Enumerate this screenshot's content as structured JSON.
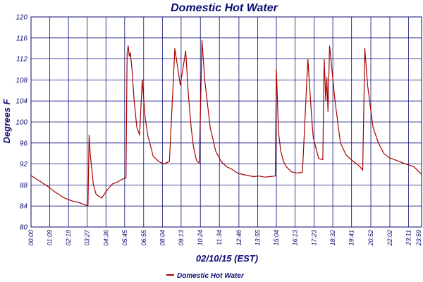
{
  "chart_data": {
    "type": "line",
    "title": "Domestic Hot Water",
    "xlabel": "02/10/15 (EST)",
    "ylabel": "Degrees F",
    "ylim": [
      80,
      120
    ],
    "yticks": [
      "80",
      "84",
      "88",
      "92",
      "96",
      "100",
      "104",
      "108",
      "112",
      "116",
      "120"
    ],
    "xlim_minutes": [
      0,
      1439
    ],
    "xticks": [
      "00:00",
      "01:09",
      "02:18",
      "03:27",
      "04:36",
      "05:45",
      "06:55",
      "08:04",
      "09:13",
      "10:24",
      "11:34",
      "12:46",
      "13:55",
      "15:04",
      "16:13",
      "17:23",
      "18:32",
      "19:41",
      "20:52",
      "22:02",
      "23:11",
      "23:59"
    ],
    "grid": true,
    "legend_position": "bottom-center",
    "colors": {
      "series": "#aa0000",
      "grid": "#0b0b73",
      "text": "#0b0b73"
    },
    "series": [
      {
        "name": "Domestic Hot Water",
        "x": [
          0,
          30,
          60,
          90,
          120,
          150,
          180,
          200,
          210,
          214,
          218,
          230,
          240,
          260,
          280,
          300,
          320,
          340,
          350,
          354,
          358,
          362,
          366,
          372,
          380,
          390,
          400,
          410,
          420,
          430,
          440,
          450,
          460,
          470,
          490,
          510,
          530,
          550,
          570,
          580,
          590,
          598,
          604,
          608,
          612,
          620,
          630,
          640,
          660,
          680,
          700,
          720,
          740,
          760,
          780,
          800,
          820,
          840,
          860,
          880,
          900,
          904,
          908,
          912,
          920,
          930,
          940,
          950,
          960,
          980,
          1000,
          1020,
          1030,
          1036,
          1040,
          1050,
          1060,
          1075,
          1080,
          1086,
          1090,
          1094,
          1100,
          1120,
          1140,
          1160,
          1180,
          1200,
          1212,
          1216,
          1222,
          1230,
          1240,
          1260,
          1280,
          1300,
          1320,
          1350,
          1380,
          1410,
          1430,
          1439
        ],
        "y": [
          89.8,
          88.8,
          87.8,
          86.6,
          85.6,
          85.0,
          84.6,
          84.2,
          84.0,
          97.5,
          94.0,
          88.0,
          86.2,
          85.5,
          87.0,
          88.2,
          88.6,
          89.2,
          89.3,
          113.0,
          114.5,
          112.5,
          113.2,
          110.0,
          104.0,
          99.0,
          97.5,
          108.0,
          101.0,
          97.5,
          95.5,
          93.5,
          93.0,
          92.5,
          92.0,
          92.5,
          114.0,
          107.0,
          113.5,
          105.0,
          99.0,
          95.5,
          94.0,
          93.0,
          92.5,
          92.2,
          115.5,
          108.0,
          99.0,
          94.5,
          92.5,
          91.5,
          91.0,
          90.3,
          90.0,
          89.8,
          89.6,
          89.7,
          89.5,
          89.6,
          89.7,
          110.0,
          104.0,
          98.0,
          94.5,
          92.5,
          91.5,
          91.0,
          90.5,
          90.3,
          90.4,
          112.0,
          104.0,
          99.5,
          97.0,
          95.0,
          93.0,
          92.8,
          112.0,
          104.0,
          108.5,
          102.0,
          114.5,
          104.0,
          96.0,
          93.8,
          92.8,
          92.0,
          91.5,
          91.2,
          90.8,
          114.0,
          107.0,
          99.0,
          96.0,
          94.0,
          93.2,
          92.6,
          92.0,
          91.5,
          90.5,
          90.0
        ]
      }
    ]
  }
}
